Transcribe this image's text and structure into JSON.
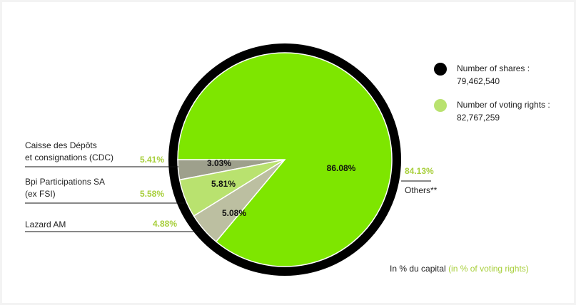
{
  "chart_data": {
    "type": "pie",
    "categories": [
      [
        "Caisse des Dépôts",
        "et consignations (CDC)"
      ],
      [
        "Bpi Participations SA",
        "(ex FSI)"
      ],
      [
        "Lazard AM"
      ],
      [
        "Others**"
      ]
    ],
    "values": [
      3.03,
      5.81,
      5.08,
      86.08
    ],
    "value_labels": [
      "3.03%",
      "5.81%",
      "5.08%",
      "86.08%"
    ],
    "colors": [
      "#9ea08c",
      "#b9e26f",
      "#bcbfa1",
      "#7ee600"
    ],
    "voting_rights": [
      5.41,
      5.58,
      4.88,
      84.13
    ],
    "voting_rights_labels": [
      "5.41%",
      "5.58%",
      "4.88%",
      "84.13%"
    ],
    "legend": [
      {
        "label": "Number of shares :",
        "text": "79,462,540",
        "color": "#000000"
      },
      {
        "label": "Number of voting rights :",
        "text": "82,767,259",
        "color": "#b9e26f"
      }
    ],
    "note": "In % du capital",
    "note_voting": "(in % of voting rights)"
  }
}
